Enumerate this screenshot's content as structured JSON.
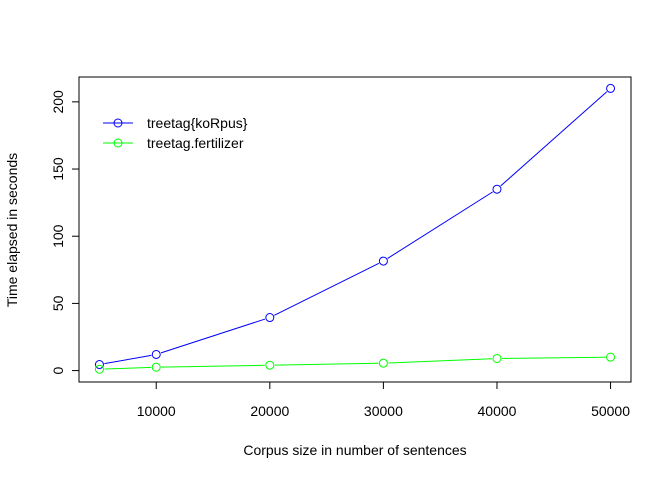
{
  "chart_data": {
    "type": "line",
    "xlabel": "Corpus size in number of sentences",
    "ylabel": "Time elapsed in seconds",
    "xlim": [
      3200,
      51800
    ],
    "ylim": [
      -8.5,
      218.5
    ],
    "x_ticks": [
      10000,
      20000,
      30000,
      40000,
      50000
    ],
    "y_ticks": [
      0,
      50,
      100,
      150,
      200
    ],
    "grid": false,
    "legend_position": "top-left",
    "series": [
      {
        "name": "treetag{koRpus}",
        "color": "#0000ff",
        "x": [
          5000,
          10000,
          20000,
          30000,
          40000,
          50000
        ],
        "values": [
          4.5,
          12,
          39.5,
          81.5,
          135,
          210
        ]
      },
      {
        "name": "treetag.fertilizer",
        "color": "#00ff00",
        "x": [
          5000,
          10000,
          20000,
          30000,
          40000,
          50000
        ],
        "values": [
          1,
          2.5,
          4,
          5.5,
          9,
          10
        ]
      }
    ]
  }
}
